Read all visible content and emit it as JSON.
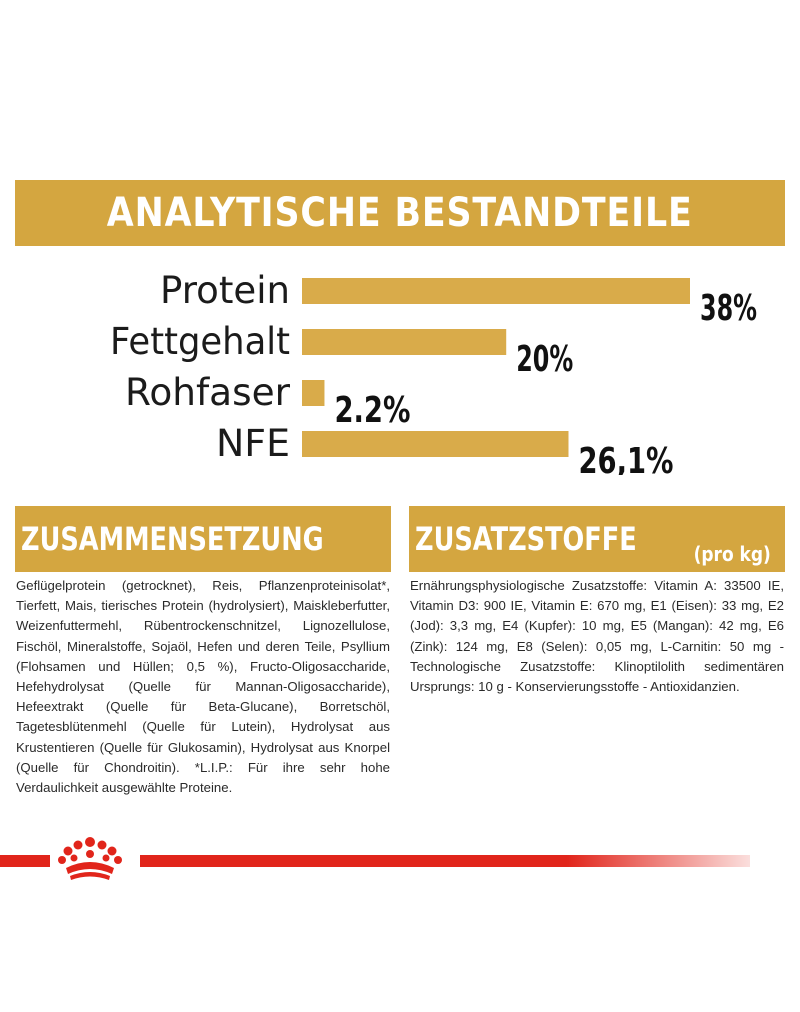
{
  "colors": {
    "gold": "#d4a640",
    "bar": "#d9ab4a",
    "red": "#e1251b",
    "text": "#1b1b1b"
  },
  "banner": {
    "title": "ANALYTISCHE BESTANDTEILE"
  },
  "chart_data": {
    "type": "bar",
    "orientation": "horizontal",
    "title": "ANALYTISCHE BESTANDTEILE",
    "categories": [
      "Protein",
      "Fettgehalt",
      "Rohfaser",
      "NFE"
    ],
    "values": [
      38,
      20,
      2.2,
      26.1
    ],
    "value_labels": [
      "38%",
      "20%",
      "2.2%",
      "26,1%"
    ],
    "xlim": [
      0,
      38
    ],
    "grid": false,
    "legend": "none"
  },
  "composition": {
    "title": "ZUSAMMENSETZUNG",
    "text": "Geflügelprotein (getrocknet), Reis, Pflanzenproteinisolat*, Tierfett, Mais, tierisches Protein (hydrolysiert), Maiskleberfutter, Weizenfuttermehl, Rübentrockenschnitzel, Lignozellulose, Fischöl, Mineralstoffe, Sojaöl, Hefen und deren Teile, Psyllium (Flohsamen und Hüllen; 0,5 %), Fructo-Oligosaccharide, Hefehydrolysat (Quelle für Mannan-Oligosaccharide), Hefeextrakt (Quelle für Beta-Glucane), Borretschöl, Tagetesblütenmehl (Quelle für Lutein), Hydrolysat aus Krustentieren (Quelle für Glukosamin), Hydrolysat aus Knorpel (Quelle für Chondroitin). *L.I.P.: Für ihre sehr hohe Verdaulichkeit ausgewählte Proteine."
  },
  "additives": {
    "title": "ZUSATZSTOFFE",
    "unit": "(pro kg)",
    "text": "Ernährungsphysiologische Zusatzstoffe: Vitamin A: 33500 IE, Vitamin D3: 900 IE, Vitamin E: 670 mg, E1 (Eisen): 33 mg, E2 (Jod): 3,3 mg, E4 (Kupfer): 10 mg, E5 (Mangan): 42 mg, E6 (Zink): 124 mg, E8 (Selen): 0,05 mg, L-Carnitin: 50 mg - Technologische Zusatzstoffe: Klinoptilolith sedimentären Ursprungs: 10 g - Konservierungsstoffe - Antioxidanzien."
  },
  "footer": {
    "logo_icon": "crown-icon"
  }
}
